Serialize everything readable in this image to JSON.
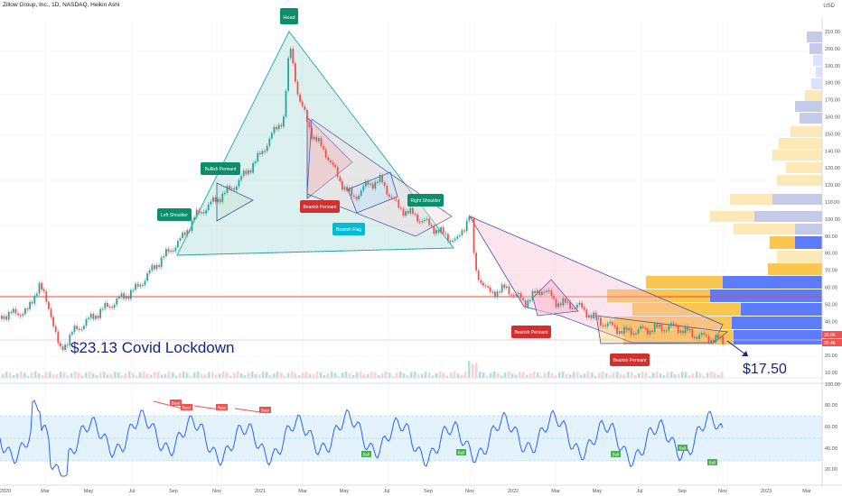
{
  "header": {
    "title": "Zillow Group, Inc., 1D, NASDAQ, Heikin Ashi",
    "currency": "USD"
  },
  "annotations": {
    "head": "Head",
    "left_shoulder": "Left Shoulder",
    "right_shoulder": "Right Shoulder",
    "bullish_pennant": "Bullish Pennant",
    "bearish_pennant_1": "Bearish Pennant",
    "bearish_pennant_2": "Bearish Pennant",
    "bearish_pennant_3": "Bearish Pennant",
    "bearish_flag": "Bearish Flag",
    "covid_low": "$23.13 Covid Lockdown",
    "target": "$17.50"
  },
  "rsi_labels": {
    "bear": "Bear",
    "bull": "Bull"
  },
  "colors": {
    "up": "#26a69a",
    "down": "#ef5350",
    "rsi_line": "#2962ff",
    "rsi_band": "#e3f2fd",
    "neckline_red": "#f44336",
    "label_green": "#0b8f6b",
    "label_red": "#d32f2f",
    "label_cyan": "#00bcd4",
    "vp_blue": "#5c7cfa",
    "vp_yellow": "#f9c74f"
  },
  "chart_data": {
    "type": "candlestick",
    "title": "Zillow Group, Inc., 1D, NASDAQ, Heikin Ashi",
    "price_axis": {
      "ticks": [
        "210.00",
        "200.00",
        "190.00",
        "180.00",
        "170.00",
        "160.00",
        "150.00",
        "140.00",
        "130.00",
        "120.00",
        "110.00",
        "100.00",
        "90.00",
        "80.00",
        "70.00",
        "60.00",
        "50.00",
        "40.00",
        "30.00",
        "20.00",
        "10.00"
      ],
      "range": [
        10,
        210
      ],
      "current_labels": [
        "30.86",
        "30.46"
      ]
    },
    "rsi_axis": {
      "ticks": [
        "100.00",
        "80.00",
        "60.00",
        "40.00",
        "20.00"
      ],
      "range": [
        10,
        100
      ],
      "band": [
        30,
        70
      ]
    },
    "time_axis": [
      "2020",
      "Mar",
      "May",
      "Jul",
      "Sep",
      "Nov",
      "2021",
      "Mar",
      "May",
      "Jul",
      "Sep",
      "Nov",
      "2022",
      "Mar",
      "May",
      "Jul",
      "Sep",
      "Nov",
      "2023",
      "Mar"
    ],
    "key_points": [
      {
        "label": "Covid low",
        "date": "2020-03",
        "value": 23.13
      },
      {
        "label": "Head",
        "date": "2021-02",
        "value": 208
      },
      {
        "label": "Target",
        "date": "2022-10",
        "value": 17.5
      }
    ],
    "grid": true
  }
}
